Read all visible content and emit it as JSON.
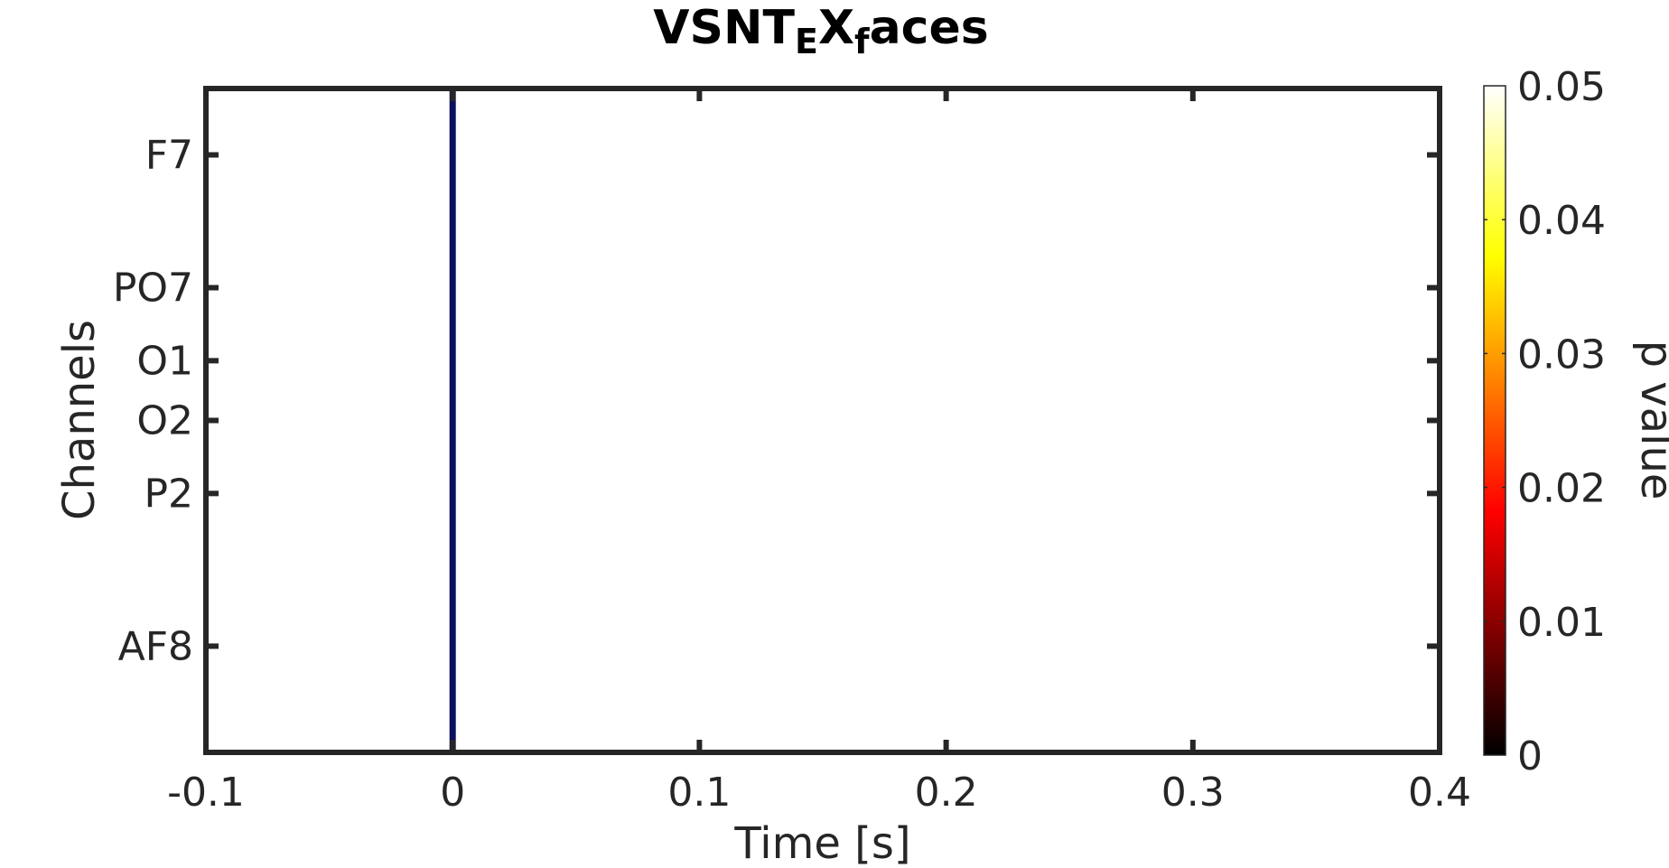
{
  "chart_data": {
    "type": "heatmap",
    "title": {
      "parts": [
        {
          "text": "VSNT",
          "sub": false
        },
        {
          "text": "E",
          "sub": true
        },
        {
          "text": "X",
          "sub": false
        },
        {
          "text": "f",
          "sub": true
        },
        {
          "text": "aces",
          "sub": false
        }
      ]
    },
    "xlabel": "Time [s]",
    "ylabel": "Channels",
    "xlim": [
      -0.1,
      0.4
    ],
    "x_ticks": [
      {
        "value": -0.1,
        "label": "-0.1"
      },
      {
        "value": 0,
        "label": "0"
      },
      {
        "value": 0.1,
        "label": "0.1"
      },
      {
        "value": 0.2,
        "label": "0.2"
      },
      {
        "value": 0.3,
        "label": "0.3"
      },
      {
        "value": 0.4,
        "label": "0.4"
      }
    ],
    "y_channel_range": [
      0,
      10
    ],
    "y_ticks": [
      {
        "label": "F7",
        "value": 1
      },
      {
        "label": "PO7",
        "value": 3
      },
      {
        "label": "O1",
        "value": 4.1
      },
      {
        "label": "O2",
        "value": 5
      },
      {
        "label": "P2",
        "value": 6.1
      },
      {
        "label": "AF8",
        "value": 8.4
      }
    ],
    "onset_marker": {
      "x": 0,
      "color": "#0b0f5c"
    },
    "background_color": "#ffffff",
    "colorbar": {
      "label": "p value",
      "colormap": "hot",
      "range": [
        0,
        0.05
      ],
      "ticks": [
        {
          "value": 0,
          "label": "0"
        },
        {
          "value": 0.01,
          "label": "0.01"
        },
        {
          "value": 0.02,
          "label": "0.02"
        },
        {
          "value": 0.03,
          "label": "0.03"
        },
        {
          "value": 0.04,
          "label": "0.04"
        },
        {
          "value": 0.05,
          "label": "0.05"
        }
      ]
    },
    "grid": false
  }
}
